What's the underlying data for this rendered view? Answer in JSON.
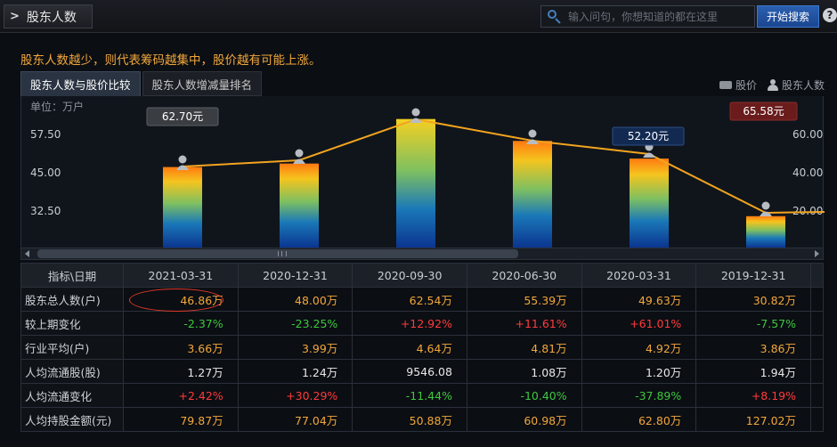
{
  "header": {
    "title": "股东人数",
    "search_placeholder": "输入问句，你想知道的都在这里",
    "search_button": "开始搜索",
    "help": "?"
  },
  "tagline": "股东人数越少，则代表筹码越集中，股价越有可能上涨。",
  "tabs": [
    {
      "label": "股东人数与股价比较",
      "active": true
    },
    {
      "label": "股东人数增减量排名",
      "active": false
    }
  ],
  "legend": {
    "price": "股价",
    "holders": "股东人数"
  },
  "chart_data": {
    "type": "bar",
    "unit_label": "单位：万户",
    "left_ticks": [
      "57.50",
      "45.00",
      "32.50"
    ],
    "right_ticks": [
      "60.00",
      "40.00",
      "20.00"
    ],
    "categories": [
      "2021-03-31",
      "2020-12-31",
      "2020-09-30",
      "2020-06-30",
      "2020-03-31",
      "2019-12-31"
    ],
    "series": [
      {
        "type": "bar",
        "values": [
          46.86,
          48.0,
          62.54,
          55.39,
          49.63,
          30.82
        ]
      },
      {
        "type": "line",
        "values": [
          62.7,
          58.4,
          49.2,
          55.6,
          52.2,
          65.58
        ]
      }
    ],
    "price_callouts": [
      {
        "index": 0,
        "text": "62.70元",
        "style": "dark"
      },
      {
        "index": 4,
        "text": "52.20元",
        "style": "blue"
      },
      {
        "index": 5,
        "text": "65.58元",
        "style": "red"
      }
    ],
    "colors": {
      "line": "#f2a41e",
      "bar_top": "#f0c020",
      "bar_bottom": "#0a3fa0"
    }
  },
  "table": {
    "corner": "指标\\日期",
    "dates": [
      "2021-03-31",
      "2020-12-31",
      "2020-09-30",
      "2020-06-30",
      "2020-03-31",
      "2019-12-31"
    ],
    "rows": [
      {
        "label": "股东总人数(户)",
        "values": [
          "46.86万",
          "48.00万",
          "62.54万",
          "55.39万",
          "49.63万",
          "30.82万"
        ],
        "colors": [
          "orange",
          "orange",
          "orange",
          "orange",
          "orange",
          "orange"
        ]
      },
      {
        "label": "较上期变化",
        "values": [
          "-2.37%",
          "-23.25%",
          "+12.92%",
          "+11.61%",
          "+61.01%",
          "-7.57%"
        ],
        "colors": [
          "green",
          "green",
          "red",
          "red",
          "red",
          "green"
        ]
      },
      {
        "label": "行业平均(户)",
        "values": [
          "3.66万",
          "3.99万",
          "4.64万",
          "4.81万",
          "4.92万",
          "3.86万"
        ],
        "colors": [
          "orange",
          "orange",
          "orange",
          "orange",
          "orange",
          "orange"
        ]
      },
      {
        "label": "人均流通股(股)",
        "values": [
          "1.27万",
          "1.24万",
          "9546.08",
          "1.08万",
          "1.20万",
          "1.94万"
        ],
        "colors": [
          "white",
          "white",
          "white",
          "white",
          "white",
          "white"
        ]
      },
      {
        "label": "人均流通变化",
        "values": [
          "+2.42%",
          "+30.29%",
          "-11.44%",
          "-10.40%",
          "-37.89%",
          "+8.19%"
        ],
        "colors": [
          "red",
          "red",
          "green",
          "green",
          "green",
          "red"
        ]
      },
      {
        "label": "人均持股金额(元)",
        "values": [
          "79.87万",
          "77.04万",
          "50.88万",
          "60.98万",
          "62.80万",
          "127.02万"
        ],
        "colors": [
          "orange",
          "orange",
          "orange",
          "orange",
          "orange",
          "orange"
        ]
      }
    ]
  }
}
